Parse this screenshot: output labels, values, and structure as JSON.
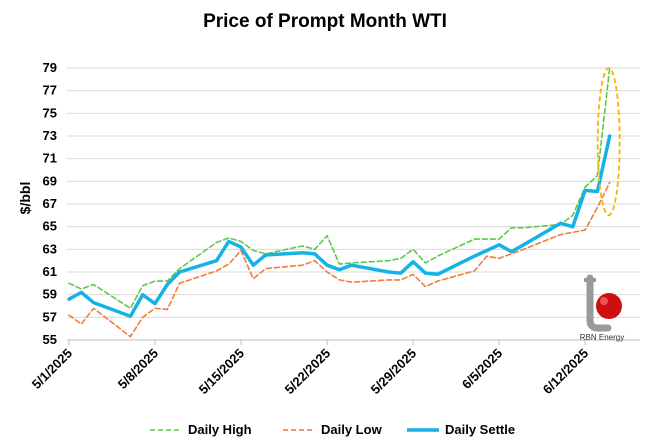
{
  "chart_data": {
    "type": "line",
    "title": "Price of Prompt Month WTI",
    "xlabel": "",
    "ylabel": "$/bbl",
    "ylim": [
      55,
      79
    ],
    "yticks": [
      55,
      57,
      59,
      61,
      63,
      65,
      67,
      69,
      71,
      73,
      75,
      77,
      79
    ],
    "x_range_days": [
      0,
      45
    ],
    "xtick_labels": [
      "5/1/2025",
      "5/8/2025",
      "5/15/2025",
      "5/22/2025",
      "5/29/2025",
      "6/5/2025",
      "6/12/2025"
    ],
    "xtick_days": [
      0,
      7,
      14,
      21,
      28,
      35,
      42
    ],
    "series": [
      {
        "name": "Daily High",
        "color": "#5ec94a",
        "style": "dashed",
        "x": [
          0,
          1,
          2,
          5,
          6,
          7,
          8,
          9,
          12,
          13,
          14,
          15,
          16,
          19,
          20,
          21,
          22,
          23,
          26,
          27,
          28,
          29,
          30,
          33,
          34,
          35,
          36,
          37,
          40,
          41,
          42,
          43,
          44
        ],
        "values": [
          60.0,
          59.5,
          59.9,
          57.8,
          59.8,
          60.2,
          60.2,
          61.3,
          63.6,
          64.0,
          63.7,
          62.9,
          62.6,
          63.3,
          63.0,
          64.2,
          61.7,
          61.8,
          62.0,
          62.2,
          63.0,
          61.8,
          62.4,
          63.9,
          63.9,
          63.9,
          64.9,
          64.9,
          65.2,
          66.0,
          68.5,
          69.5,
          79.0
        ]
      },
      {
        "name": "Daily Low",
        "color": "#f07d3c",
        "style": "dashed",
        "x": [
          0,
          1,
          2,
          5,
          6,
          7,
          8,
          9,
          12,
          13,
          14,
          15,
          16,
          19,
          20,
          21,
          22,
          23,
          26,
          27,
          28,
          29,
          30,
          33,
          34,
          35,
          36,
          37,
          40,
          41,
          42,
          43,
          44
        ],
        "values": [
          57.2,
          56.4,
          57.8,
          55.3,
          57.0,
          57.8,
          57.7,
          60.0,
          61.1,
          61.7,
          62.9,
          60.4,
          61.3,
          61.6,
          62.0,
          61.0,
          60.3,
          60.1,
          60.3,
          60.3,
          60.8,
          59.7,
          60.2,
          61.1,
          62.4,
          62.2,
          62.6,
          63.0,
          64.3,
          64.5,
          64.7,
          66.7,
          68.9
        ]
      },
      {
        "name": "Daily Settle",
        "color": "#15b2e8",
        "style": "solid",
        "x": [
          0,
          1,
          2,
          5,
          6,
          7,
          8,
          9,
          12,
          13,
          14,
          15,
          16,
          19,
          20,
          21,
          22,
          23,
          26,
          27,
          28,
          29,
          30,
          33,
          34,
          35,
          36,
          37,
          40,
          41,
          42,
          43,
          44
        ],
        "values": [
          58.6,
          59.2,
          58.3,
          57.1,
          59.0,
          58.2,
          59.9,
          61.0,
          62.0,
          63.7,
          63.2,
          61.6,
          62.5,
          62.7,
          62.6,
          61.6,
          61.2,
          61.6,
          61.0,
          60.9,
          61.9,
          60.9,
          60.8,
          62.4,
          62.9,
          63.4,
          62.8,
          63.4,
          65.3,
          65.0,
          68.2,
          68.1,
          73.0
        ]
      }
    ],
    "highlight": {
      "shape": "dashed-ellipse",
      "color": "#f5b400",
      "x": 44,
      "y_range": [
        66.0,
        79.0
      ]
    },
    "legend_position": "bottom"
  },
  "logo": {
    "text": "RBN Energy"
  }
}
